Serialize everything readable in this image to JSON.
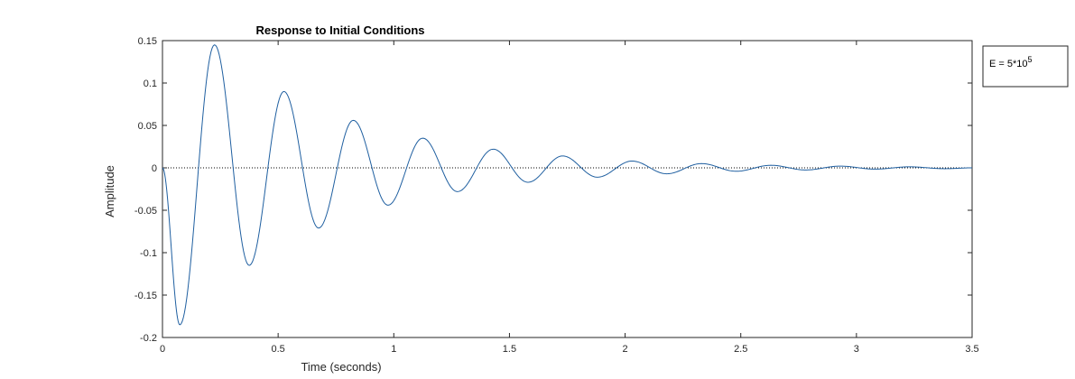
{
  "chart_data": {
    "type": "line",
    "title": "Response to Initial Conditions",
    "xlabel": "Time (seconds)",
    "ylabel": "Amplitude",
    "xlim": [
      0,
      3.5
    ],
    "ylim": [
      -0.2,
      0.15
    ],
    "xticks": [
      0,
      0.5,
      1,
      1.5,
      2,
      2.5,
      3,
      3.5
    ],
    "xtick_labels": [
      "0",
      "0.5",
      "1",
      "1.5",
      "2",
      "2.5",
      "3",
      "3.5"
    ],
    "yticks": [
      -0.2,
      -0.15,
      -0.1,
      -0.05,
      0,
      0.05,
      0.1,
      0.15
    ],
    "ytick_labels": [
      "-0.2",
      "-0.15",
      "-0.1",
      "-0.05",
      "0",
      "0.05",
      "0.1",
      "0.15"
    ],
    "grid": false,
    "zero_line": "dotted",
    "legend": {
      "placement": "outside-top-right",
      "entry_prefix": "E = 5*10",
      "entry_superscript": "5"
    },
    "series": [
      {
        "color": "#1f5fa0",
        "x": [
          0,
          0.075,
          0.225,
          0.375,
          0.525,
          0.675,
          0.825,
          0.975,
          1.125,
          1.275,
          1.43,
          1.58,
          1.73,
          1.88,
          2.03,
          2.18,
          2.33,
          2.48,
          2.63,
          2.78,
          2.93,
          3.08,
          3.23,
          3.38,
          3.5
        ],
        "y": [
          0,
          -0.185,
          0.145,
          -0.115,
          0.09,
          -0.071,
          0.056,
          -0.044,
          0.035,
          -0.028,
          0.022,
          -0.017,
          0.014,
          -0.011,
          0.008,
          -0.007,
          0.005,
          -0.004,
          0.003,
          -0.0025,
          0.002,
          -0.0015,
          0.0012,
          -0.001,
          0
        ]
      }
    ]
  }
}
